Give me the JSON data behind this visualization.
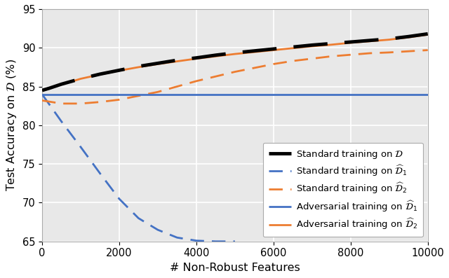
{
  "xlim": [
    0,
    10000
  ],
  "ylim": [
    65,
    95
  ],
  "yticks": [
    65,
    70,
    75,
    80,
    85,
    90,
    95
  ],
  "xticks": [
    0,
    2000,
    4000,
    6000,
    8000,
    10000
  ],
  "xlabel": "# Non-Robust Features",
  "ylabel": "Test Accuracy on $\\mathcal{D}$ (%)",
  "background_color": "#e8e8e8",
  "grid_color": "#ffffff",
  "lines": [
    {
      "label": "Standard training on $\\mathcal{D}$",
      "color": "#000000",
      "linestyle": "dashed",
      "linewidth": 3.5,
      "x": [
        0,
        200,
        500,
        1000,
        1500,
        2000,
        2500,
        3000,
        3500,
        4000,
        4500,
        5000,
        5500,
        6000,
        6500,
        7000,
        7500,
        8000,
        8500,
        9000,
        9500,
        10000
      ],
      "y": [
        84.5,
        84.8,
        85.3,
        86.0,
        86.6,
        87.1,
        87.6,
        88.0,
        88.4,
        88.7,
        89.05,
        89.35,
        89.6,
        89.85,
        90.1,
        90.35,
        90.55,
        90.75,
        90.95,
        91.15,
        91.45,
        91.8
      ],
      "dashes": [
        10,
        5
      ],
      "zorder": 5
    },
    {
      "label": "Standard training on $\\widehat{\\mathcal{D}}_1$",
      "color": "#4472c4",
      "linestyle": "dashed",
      "linewidth": 2.0,
      "x": [
        0,
        500,
        1000,
        1500,
        2000,
        2500,
        3000,
        3500,
        4000,
        4500,
        5000
      ],
      "y": [
        84.0,
        80.5,
        77.2,
        73.8,
        70.5,
        68.0,
        66.5,
        65.5,
        65.1,
        65.0,
        65.0
      ],
      "dashes": [
        7,
        4
      ],
      "zorder": 3
    },
    {
      "label": "Standard training on $\\widehat{\\mathcal{D}}_2$",
      "color": "#ed7d31",
      "linestyle": "dashed",
      "linewidth": 2.0,
      "x": [
        0,
        500,
        1000,
        1500,
        2000,
        2500,
        3000,
        3500,
        4000,
        4500,
        5000,
        5500,
        6000,
        6500,
        7000,
        7500,
        8000,
        8500,
        9000,
        9500,
        10000
      ],
      "y": [
        83.2,
        82.8,
        82.8,
        83.0,
        83.3,
        83.8,
        84.3,
        85.0,
        85.7,
        86.3,
        86.9,
        87.4,
        87.9,
        88.3,
        88.6,
        88.9,
        89.1,
        89.3,
        89.4,
        89.55,
        89.7
      ],
      "dashes": [
        7,
        4
      ],
      "zorder": 3
    },
    {
      "label": "Adversarial training on $\\widehat{\\mathcal{D}}_1$",
      "color": "#4472c4",
      "linestyle": "solid",
      "linewidth": 2.0,
      "x": [
        0,
        10000
      ],
      "y": [
        84.0,
        84.0
      ],
      "dashes": null,
      "zorder": 4
    },
    {
      "label": "Adversarial training on $\\widehat{\\mathcal{D}}_2$",
      "color": "#ed7d31",
      "linestyle": "solid",
      "linewidth": 2.0,
      "x": [
        0,
        200,
        500,
        1000,
        1500,
        2000,
        2500,
        3000,
        3500,
        4000,
        4500,
        5000,
        5500,
        6000,
        6500,
        7000,
        7500,
        8000,
        8500,
        9000,
        9500,
        10000
      ],
      "y": [
        84.5,
        84.8,
        85.25,
        86.0,
        86.55,
        87.05,
        87.5,
        87.9,
        88.25,
        88.6,
        88.9,
        89.2,
        89.45,
        89.7,
        89.95,
        90.2,
        90.4,
        90.65,
        90.85,
        91.05,
        91.35,
        91.7
      ],
      "dashes": null,
      "zorder": 4
    }
  ],
  "legend": {
    "loc": "lower right",
    "fontsize": 9.5,
    "framealpha": 1.0,
    "edgecolor": "#aaaaaa",
    "handlelength": 2.5,
    "borderpad": 0.6,
    "labelspacing": 0.4
  },
  "tick_fontsize": 10.5,
  "label_fontsize": 11.5,
  "figure_size": [
    6.4,
    3.97
  ],
  "dpi": 100
}
